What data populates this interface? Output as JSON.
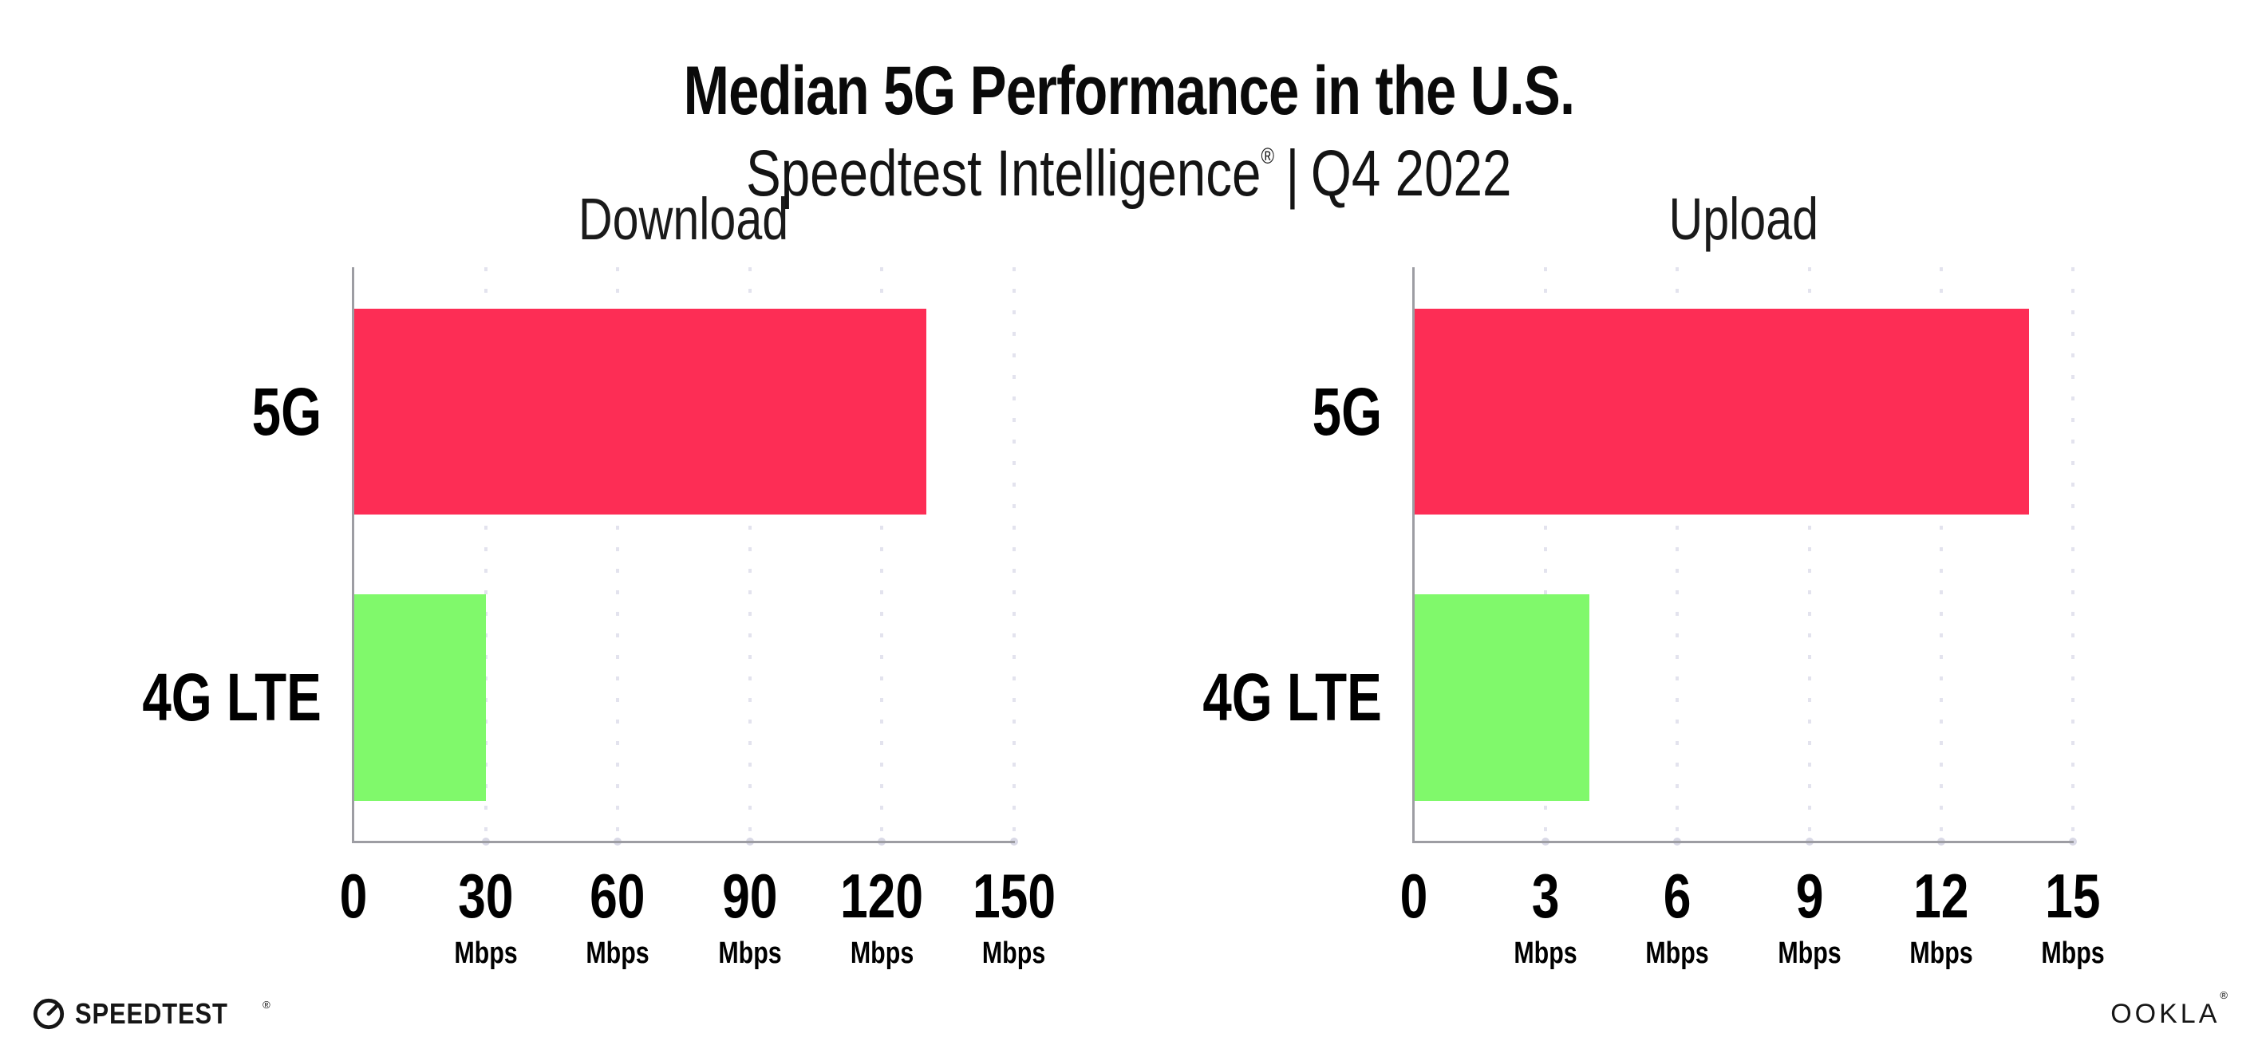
{
  "header": {
    "title": "Median 5G Performance in the U.S.",
    "subtitle_brand": "Speedtest Intelligence",
    "subtitle_reg": "®",
    "subtitle_sep": "|",
    "subtitle_period": "Q4 2022"
  },
  "colors": {
    "bar_5g": "#FD2D55",
    "bar_4g_lte": "#80F96B",
    "spine": "#9d9da3",
    "gridline": "#e3e3ee"
  },
  "chart_data": [
    {
      "type": "bar",
      "orientation": "horizontal",
      "title": "Download",
      "categories": [
        "5G",
        "4G LTE"
      ],
      "values": [
        130,
        30
      ],
      "unit": "Mbps",
      "xlim": [
        0,
        150
      ],
      "xticks": [
        0,
        30,
        60,
        90,
        120,
        150
      ],
      "bar_colors": [
        "#FD2D55",
        "#80F96B"
      ],
      "grid": "vertical-dotted",
      "legend": "none"
    },
    {
      "type": "bar",
      "orientation": "horizontal",
      "title": "Upload",
      "categories": [
        "5G",
        "4G LTE"
      ],
      "values": [
        14,
        4
      ],
      "unit": "Mbps",
      "xlim": [
        0,
        15
      ],
      "xticks": [
        0,
        3,
        6,
        9,
        12,
        15
      ],
      "bar_colors": [
        "#FD2D55",
        "#80F96B"
      ],
      "grid": "vertical-dotted",
      "legend": "none"
    }
  ],
  "footer": {
    "speedtest_label": "SPEEDTEST",
    "speedtest_mark": "®",
    "ookla_label": "OOKLA",
    "ookla_mark": "®"
  }
}
